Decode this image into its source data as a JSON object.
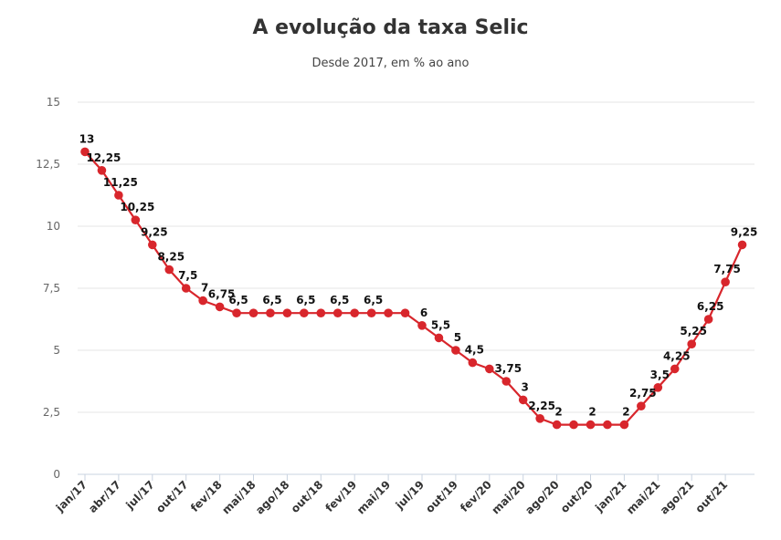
{
  "chart_data": {
    "type": "line",
    "title": "A evolução da taxa Selic",
    "subtitle": "Desde 2017, em % ao ano",
    "xlabel": "",
    "ylabel": "",
    "ylim": [
      0,
      15
    ],
    "yticks": [
      0,
      2.5,
      5,
      7.5,
      10,
      12.5,
      15
    ],
    "ytick_labels": [
      "0",
      "2,5",
      "5",
      "7,5",
      "10",
      "12,5",
      "15"
    ],
    "grid": true,
    "line_color": "#d8262c",
    "x_tick_labels": [
      "jan/17",
      "abr/17",
      "jul/17",
      "out/17",
      "fev/18",
      "mai/18",
      "ago/18",
      "out/18",
      "fev/19",
      "mai/19",
      "jul/19",
      "out/19",
      "fev/20",
      "mai/20",
      "ago/20",
      "out/20",
      "jan/21",
      "mai/21",
      "ago/21",
      "out/21"
    ],
    "series": [
      {
        "values": [
          13,
          12.25,
          11.25,
          10.25,
          9.25,
          8.25,
          7.5,
          7,
          6.75,
          6.5,
          6.5,
          6.5,
          6.5,
          6.5,
          6.5,
          6.5,
          6.5,
          6.5,
          6.5,
          6.5,
          6,
          5.5,
          5,
          4.5,
          4.25,
          3.75,
          3,
          2.25,
          2,
          2,
          2,
          2,
          2,
          2.75,
          3.5,
          4.25,
          5.25,
          6.25,
          7.75,
          9.25
        ],
        "labels": [
          "13",
          "12,25",
          "11,25",
          "10,25",
          "9,25",
          "8,25",
          "7,5",
          "7",
          "6,75",
          "6,5",
          "",
          "6,5",
          "",
          "6,5",
          "",
          "6,5",
          "",
          "6,5",
          "",
          "",
          "6",
          "5,5",
          "5",
          "4,5",
          "",
          "3,75",
          "3",
          "2,25",
          "2",
          "",
          "2",
          "",
          "2",
          "2,75",
          "3,5",
          "4,25",
          "5,25",
          "6,25",
          "7,75",
          "9,25"
        ]
      }
    ]
  }
}
